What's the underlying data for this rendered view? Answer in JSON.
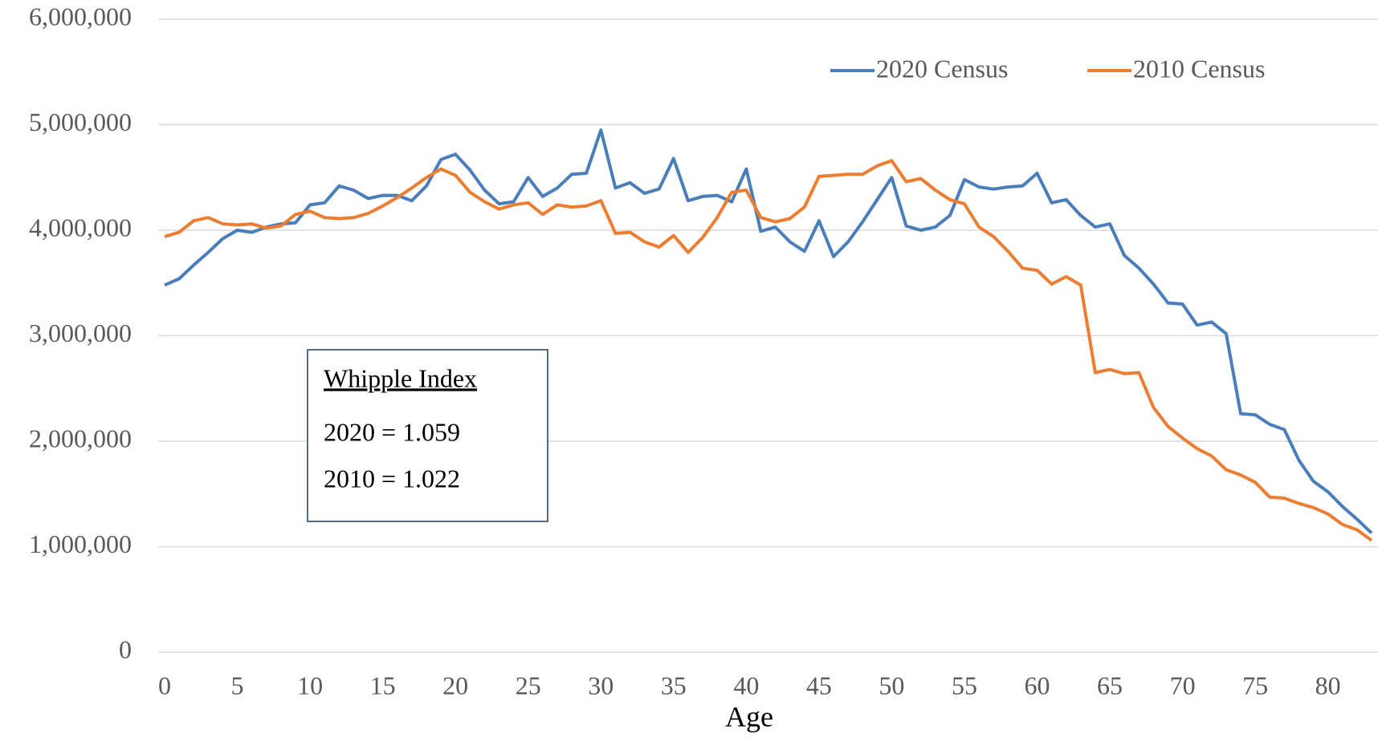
{
  "chart_data": {
    "type": "line",
    "xlabel": "Age",
    "x": [
      0,
      1,
      2,
      3,
      4,
      5,
      6,
      7,
      8,
      9,
      10,
      11,
      12,
      13,
      14,
      15,
      16,
      17,
      18,
      19,
      20,
      21,
      22,
      23,
      24,
      25,
      26,
      27,
      28,
      29,
      30,
      31,
      32,
      33,
      34,
      35,
      36,
      37,
      38,
      39,
      40,
      41,
      42,
      43,
      44,
      45,
      46,
      47,
      48,
      49,
      50,
      51,
      52,
      53,
      54,
      55,
      56,
      57,
      58,
      59,
      60,
      61,
      62,
      63,
      64,
      65,
      66,
      67,
      68,
      69,
      70,
      71,
      72,
      73,
      74,
      75,
      76,
      77,
      78,
      79,
      80,
      81,
      82,
      83
    ],
    "xlim": [
      0,
      83
    ],
    "xticks": [
      0,
      5,
      10,
      15,
      20,
      25,
      30,
      35,
      40,
      45,
      50,
      55,
      60,
      65,
      70,
      75,
      80
    ],
    "ylim": [
      0,
      6000000
    ],
    "yticks": [
      0,
      {
        "value": 1000000,
        "label": "1,000,000"
      },
      {
        "value": 2000000,
        "label": "2,000,000"
      },
      {
        "value": 3000000,
        "label": "3,000,000"
      },
      {
        "value": 4000000,
        "label": "4,000,000"
      },
      {
        "value": 5000000,
        "label": "5,000,000"
      },
      {
        "value": 6000000,
        "label": "6,000,000"
      }
    ],
    "grid": true,
    "series": [
      {
        "name": "2020 Census",
        "color": "#4a7ebb",
        "values": [
          3480000,
          3540000,
          3670000,
          3790000,
          3920000,
          4000000,
          3980000,
          4030000,
          4060000,
          4070000,
          4240000,
          4260000,
          4420000,
          4380000,
          4300000,
          4330000,
          4330000,
          4280000,
          4420000,
          4670000,
          4720000,
          4570000,
          4380000,
          4250000,
          4270000,
          4500000,
          4320000,
          4400000,
          4530000,
          4540000,
          4950000,
          4400000,
          4450000,
          4350000,
          4390000,
          4680000,
          4280000,
          4320000,
          4330000,
          4270000,
          4580000,
          3990000,
          4030000,
          3890000,
          3800000,
          4090000,
          3750000,
          3890000,
          4080000,
          4290000,
          4500000,
          4040000,
          4000000,
          4030000,
          4140000,
          4480000,
          4410000,
          4390000,
          4410000,
          4420000,
          4540000,
          4260000,
          4290000,
          4140000,
          4030000,
          4060000,
          3760000,
          3640000,
          3490000,
          3310000,
          3300000,
          3100000,
          3130000,
          3020000,
          2260000,
          2250000,
          2160000,
          2110000,
          1820000,
          1620000,
          1520000,
          1380000,
          1260000,
          1130000
        ]
      },
      {
        "name": "2010 Census",
        "color": "#ed7d31",
        "values": [
          3940000,
          3980000,
          4090000,
          4120000,
          4060000,
          4050000,
          4060000,
          4020000,
          4040000,
          4150000,
          4180000,
          4120000,
          4110000,
          4120000,
          4160000,
          4230000,
          4310000,
          4400000,
          4500000,
          4580000,
          4520000,
          4360000,
          4270000,
          4200000,
          4240000,
          4260000,
          4150000,
          4240000,
          4220000,
          4230000,
          4280000,
          3970000,
          3980000,
          3890000,
          3840000,
          3950000,
          3790000,
          3930000,
          4120000,
          4360000,
          4380000,
          4120000,
          4080000,
          4110000,
          4220000,
          4510000,
          4520000,
          4530000,
          4530000,
          4610000,
          4660000,
          4460000,
          4490000,
          4380000,
          4290000,
          4250000,
          4030000,
          3940000,
          3800000,
          3640000,
          3620000,
          3490000,
          3560000,
          3480000,
          2650000,
          2680000,
          2640000,
          2650000,
          2320000,
          2140000,
          2030000,
          1930000,
          1860000,
          1730000,
          1680000,
          1610000,
          1470000,
          1460000,
          1410000,
          1370000,
          1310000,
          1210000,
          1160000,
          1060000
        ]
      }
    ],
    "legend": "top-right",
    "annotations": [
      "Whipple Index",
      "2020 = 1.059",
      "2010 = 1.022"
    ]
  }
}
